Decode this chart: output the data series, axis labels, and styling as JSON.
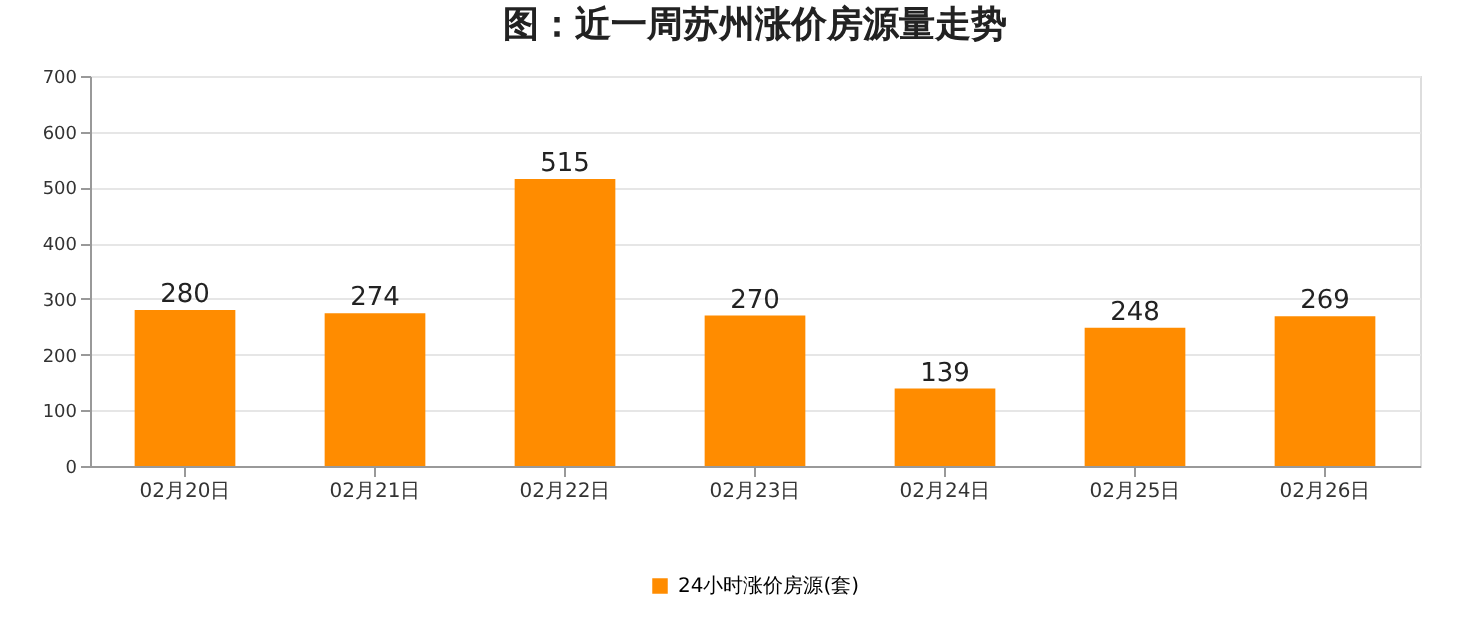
{
  "chart_data": {
    "type": "bar",
    "title": "图：近一周苏州涨价房源量走势",
    "categories": [
      "02月20日",
      "02月21日",
      "02月22日",
      "02月23日",
      "02月24日",
      "02月25日",
      "02月26日"
    ],
    "series": [
      {
        "name": "24小时涨价房源(套)",
        "color": "#ff8c00",
        "values": [
          280,
          274,
          515,
          270,
          139,
          248,
          269
        ]
      }
    ],
    "ylim": [
      0,
      700
    ],
    "yticks": [
      0,
      100,
      200,
      300,
      400,
      500,
      600,
      700
    ],
    "grid": "y",
    "legend": "bottom",
    "data_labels": true
  }
}
